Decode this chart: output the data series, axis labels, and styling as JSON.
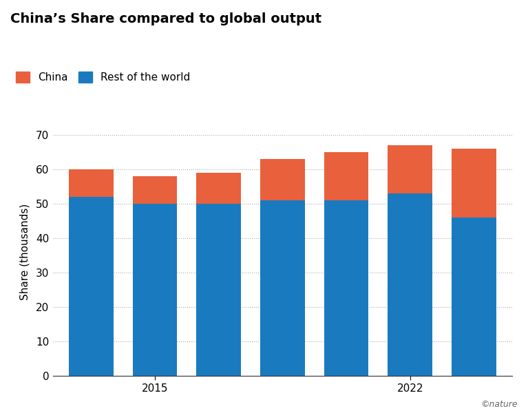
{
  "title": "China’s Share compared to global output",
  "ylabel": "Share (thousands)",
  "x_tick_positions": [
    1,
    5
  ],
  "x_tick_labels": [
    "2015",
    "2022"
  ],
  "rest_of_world": [
    52,
    50,
    50,
    51,
    51,
    53,
    46
  ],
  "china": [
    8,
    8,
    9,
    12,
    14,
    14,
    20
  ],
  "china_color": "#e8603c",
  "world_color": "#1a7abf",
  "background_color": "#ffffff",
  "ylim": [
    0,
    72
  ],
  "yticks": [
    0,
    10,
    20,
    30,
    40,
    50,
    60,
    70
  ],
  "legend_china": "China",
  "legend_world": "Rest of the world",
  "title_fontsize": 14,
  "axis_fontsize": 11,
  "tick_fontsize": 11,
  "legend_fontsize": 11,
  "nature_text": "©nature",
  "bar_width": 0.7,
  "xlim": [
    -0.6,
    6.6
  ]
}
